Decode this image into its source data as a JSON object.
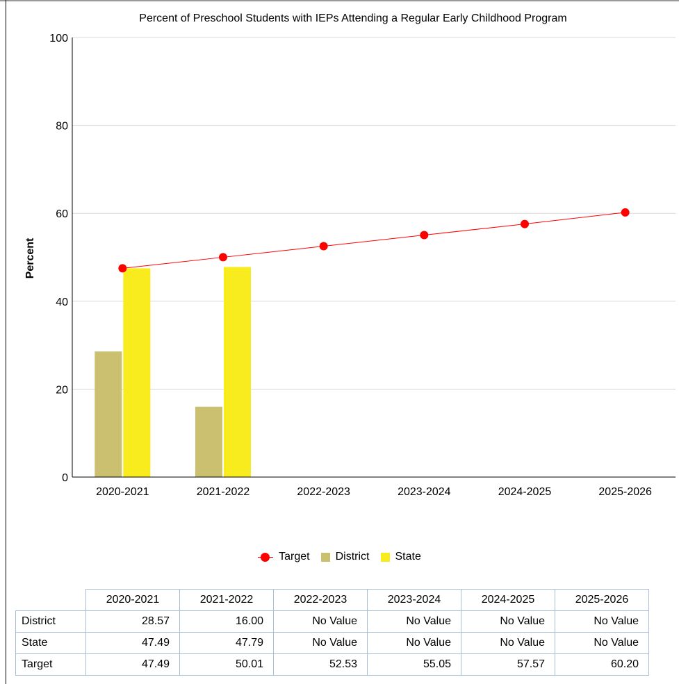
{
  "chart_data": {
    "type": "bar",
    "title": "Percent of Preschool Students with IEPs Attending a Regular Early Childhood Program",
    "xlabel": "",
    "ylabel": "Percent",
    "ylim": [
      0,
      100
    ],
    "yticks": [
      0,
      20,
      40,
      60,
      80,
      100
    ],
    "grid": true,
    "categories": [
      "2020-2021",
      "2021-2022",
      "2022-2023",
      "2023-2024",
      "2024-2025",
      "2025-2026"
    ],
    "series": [
      {
        "name": "District",
        "kind": "bar",
        "color": "#cbbf70",
        "values": [
          28.57,
          16.0,
          null,
          null,
          null,
          null
        ]
      },
      {
        "name": "State",
        "kind": "bar",
        "color": "#f8ec1e",
        "values": [
          47.49,
          47.79,
          null,
          null,
          null,
          null
        ]
      },
      {
        "name": "Target",
        "kind": "line",
        "color": "#ff0000",
        "values": [
          47.49,
          50.01,
          52.53,
          55.05,
          57.57,
          60.2
        ]
      }
    ],
    "legend": {
      "placement": "bottom",
      "items": [
        "Target",
        "District",
        "State"
      ]
    }
  },
  "table": {
    "columns": [
      "2020-2021",
      "2021-2022",
      "2022-2023",
      "2023-2024",
      "2024-2025",
      "2025-2026"
    ],
    "rows": [
      {
        "label": "District",
        "cells": [
          "28.57",
          "16.00",
          "No Value",
          "No Value",
          "No Value",
          "No Value"
        ]
      },
      {
        "label": "State",
        "cells": [
          "47.49",
          "47.79",
          "No Value",
          "No Value",
          "No Value",
          "No Value"
        ]
      },
      {
        "label": "Target",
        "cells": [
          "47.49",
          "50.01",
          "52.53",
          "55.05",
          "57.57",
          "60.20"
        ]
      }
    ]
  }
}
